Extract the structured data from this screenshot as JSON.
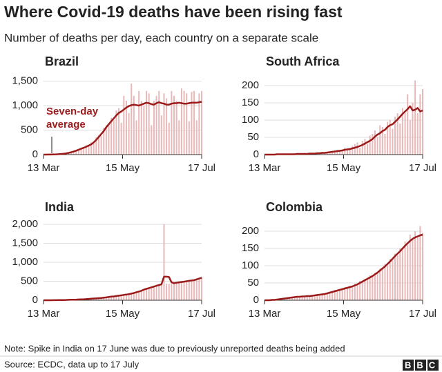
{
  "title": "Where Covid-19 deaths have been rising fast",
  "subtitle": "Number of deaths per day, each country on a separate scale",
  "note": "Note: Spike in India on 17 June was due to previously unreported deaths being added",
  "source": "Source: ECDC, data up to 17 July",
  "logo": "BBC",
  "chart_data": [
    {
      "type": "bar",
      "title": "Brazil",
      "annotation": [
        "Seven-day",
        "average"
      ],
      "x": [
        0,
        2,
        4,
        6,
        8,
        10,
        12,
        14,
        16,
        18,
        20,
        22,
        24,
        26,
        28,
        30,
        32,
        34,
        36,
        38,
        40,
        42,
        44,
        46,
        48,
        50,
        52,
        54,
        56,
        58,
        60,
        62,
        64,
        66,
        68,
        70,
        72,
        74,
        76,
        78,
        80,
        82,
        84,
        86,
        88,
        90,
        92,
        94,
        96,
        98,
        100,
        102,
        104,
        106,
        108,
        110,
        112,
        114,
        116,
        118,
        120,
        122,
        124,
        126
      ],
      "xlim": [
        0,
        126
      ],
      "xticks": [
        {
          "value": 0,
          "label": "13 Mar"
        },
        {
          "value": 63,
          "label": "15 May"
        },
        {
          "value": 126,
          "label": "17 Jul"
        }
      ],
      "ylim": [
        0,
        1550
      ],
      "yticks": [
        0,
        500,
        {
          "value": 1000,
          "label": "1,000"
        },
        {
          "value": 1500,
          "label": "1,500"
        }
      ],
      "grid": true,
      "daily": {
        "color": "#e9b8b8",
        "values": [
          0,
          0,
          2,
          3,
          5,
          7,
          10,
          15,
          20,
          30,
          40,
          50,
          70,
          90,
          110,
          140,
          120,
          190,
          200,
          250,
          270,
          350,
          400,
          380,
          550,
          600,
          650,
          750,
          700,
          900,
          950,
          650,
          1200,
          1100,
          850,
          1450,
          1200,
          700,
          1300,
          1100,
          1000,
          1300,
          1250,
          600,
          1100,
          1200,
          1300,
          800,
          1250,
          1150,
          650,
          1300,
          1200,
          1100,
          700,
          1350,
          1300,
          1250,
          680,
          1280,
          1300,
          700,
          1250,
          1300
        ]
      },
      "average": {
        "color": "#9b1b1b",
        "values": [
          0,
          0,
          1,
          2,
          4,
          6,
          9,
          13,
          18,
          25,
          35,
          48,
          62,
          80,
          100,
          120,
          140,
          160,
          185,
          210,
          250,
          300,
          360,
          420,
          480,
          560,
          620,
          680,
          740,
          800,
          850,
          880,
          920,
          960,
          990,
          1010,
          1020,
          1010,
          1000,
          1020,
          1040,
          1060,
          1050,
          1030,
          1020,
          1050,
          1070,
          1050,
          1040,
          1020,
          1020,
          1040,
          1050,
          1050,
          1060,
          1050,
          1040,
          1040,
          1050,
          1060,
          1060,
          1060,
          1070,
          1080
        ]
      }
    },
    {
      "type": "bar",
      "title": "South Africa",
      "x": [
        0,
        2,
        4,
        6,
        8,
        10,
        12,
        14,
        16,
        18,
        20,
        22,
        24,
        26,
        28,
        30,
        32,
        34,
        36,
        38,
        40,
        42,
        44,
        46,
        48,
        50,
        52,
        54,
        56,
        58,
        60,
        62,
        64,
        66,
        68,
        70,
        72,
        74,
        76,
        78,
        80,
        82,
        84,
        86,
        88,
        90,
        92,
        94,
        96,
        98,
        100,
        102,
        104,
        106,
        108,
        110,
        112,
        114,
        116,
        118,
        120,
        122,
        124,
        126
      ],
      "xlim": [
        0,
        126
      ],
      "xticks": [
        {
          "value": 0,
          "label": "13 Mar"
        },
        {
          "value": 63,
          "label": "15 May"
        },
        {
          "value": 126,
          "label": "17 Jul"
        }
      ],
      "ylim": [
        0,
        220
      ],
      "yticks": [
        0,
        50,
        100,
        150,
        200
      ],
      "grid": true,
      "daily": {
        "color": "#e9b8b8",
        "values": [
          0,
          0,
          0,
          0,
          1,
          1,
          2,
          1,
          1,
          2,
          1,
          2,
          1,
          3,
          2,
          3,
          2,
          4,
          3,
          5,
          4,
          6,
          5,
          8,
          6,
          7,
          9,
          10,
          12,
          14,
          10,
          15,
          20,
          18,
          15,
          25,
          30,
          35,
          20,
          40,
          45,
          30,
          55,
          60,
          70,
          50,
          85,
          80,
          60,
          95,
          100,
          75,
          110,
          120,
          90,
          135,
          120,
          175,
          100,
          150,
          215,
          120,
          175,
          190
        ]
      },
      "average": {
        "color": "#9b1b1b",
        "values": [
          0,
          0,
          0,
          0,
          0,
          1,
          1,
          1,
          1,
          1,
          1,
          1,
          1,
          2,
          2,
          2,
          2,
          2,
          3,
          3,
          3,
          4,
          4,
          5,
          5,
          6,
          7,
          8,
          9,
          10,
          11,
          12,
          14,
          15,
          16,
          18,
          20,
          22,
          25,
          28,
          32,
          36,
          40,
          45,
          52,
          58,
          62,
          68,
          72,
          80,
          85,
          88,
          95,
          102,
          110,
          118,
          125,
          132,
          140,
          128,
          130,
          135,
          125,
          128
        ]
      }
    },
    {
      "type": "bar",
      "title": "India",
      "x": [
        0,
        2,
        4,
        6,
        8,
        10,
        12,
        14,
        16,
        18,
        20,
        22,
        24,
        26,
        28,
        30,
        32,
        34,
        36,
        38,
        40,
        42,
        44,
        46,
        48,
        50,
        52,
        54,
        56,
        58,
        60,
        62,
        64,
        66,
        68,
        70,
        72,
        74,
        76,
        78,
        80,
        82,
        84,
        86,
        88,
        90,
        92,
        94,
        96,
        98,
        100,
        102,
        104,
        106,
        108,
        110,
        112,
        114,
        116,
        118,
        120,
        122,
        124,
        126
      ],
      "xlim": [
        0,
        126
      ],
      "xticks": [
        {
          "value": 0,
          "label": "13 Mar"
        },
        {
          "value": 63,
          "label": "15 May"
        },
        {
          "value": 126,
          "label": "17 Jul"
        }
      ],
      "ylim": [
        0,
        2000
      ],
      "yticks": [
        0,
        500,
        {
          "value": 1000,
          "label": "1,000"
        },
        {
          "value": 1500,
          "label": "1,500"
        },
        {
          "value": 2000,
          "label": "2,000"
        }
      ],
      "grid": true,
      "daily": {
        "color": "#e9b8b8",
        "values": [
          0,
          0,
          0,
          0,
          1,
          2,
          3,
          4,
          6,
          8,
          10,
          13,
          15,
          18,
          20,
          25,
          28,
          32,
          36,
          42,
          48,
          52,
          58,
          62,
          70,
          80,
          88,
          98,
          105,
          115,
          125,
          135,
          145,
          155,
          170,
          180,
          195,
          215,
          240,
          260,
          290,
          310,
          330,
          350,
          380,
          410,
          420,
          440,
          2000,
          440,
          430,
          440,
          450,
          460,
          470,
          480,
          490,
          500,
          510,
          520,
          540,
          560,
          580,
          620
        ]
      },
      "average": {
        "color": "#9b1b1b",
        "values": [
          0,
          0,
          0,
          0,
          1,
          2,
          3,
          4,
          5,
          8,
          10,
          12,
          14,
          17,
          20,
          23,
          26,
          30,
          35,
          40,
          45,
          50,
          55,
          60,
          68,
          75,
          85,
          95,
          100,
          110,
          120,
          130,
          140,
          150,
          160,
          175,
          190,
          210,
          230,
          250,
          280,
          300,
          320,
          340,
          360,
          380,
          400,
          420,
          620,
          620,
          610,
          470,
          450,
          460,
          470,
          480,
          490,
          500,
          510,
          520,
          530,
          550,
          570,
          590
        ]
      }
    },
    {
      "type": "bar",
      "title": "Colombia",
      "x": [
        0,
        2,
        4,
        6,
        8,
        10,
        12,
        14,
        16,
        18,
        20,
        22,
        24,
        26,
        28,
        30,
        32,
        34,
        36,
        38,
        40,
        42,
        44,
        46,
        48,
        50,
        52,
        54,
        56,
        58,
        60,
        62,
        64,
        66,
        68,
        70,
        72,
        74,
        76,
        78,
        80,
        82,
        84,
        86,
        88,
        90,
        92,
        94,
        96,
        98,
        100,
        102,
        104,
        106,
        108,
        110,
        112,
        114,
        116,
        118,
        120,
        122,
        124,
        126
      ],
      "xlim": [
        0,
        126
      ],
      "xticks": [
        {
          "value": 0,
          "label": "13 Mar"
        },
        {
          "value": 63,
          "label": "15 May"
        },
        {
          "value": 126,
          "label": "17 Jul"
        }
      ],
      "ylim": [
        0,
        220
      ],
      "yticks": [
        0,
        50,
        100,
        150,
        200
      ],
      "grid": true,
      "daily": {
        "color": "#e9b8b8",
        "values": [
          0,
          0,
          1,
          1,
          2,
          3,
          4,
          5,
          6,
          7,
          8,
          10,
          9,
          12,
          11,
          12,
          10,
          14,
          13,
          15,
          15,
          18,
          15,
          20,
          17,
          22,
          24,
          26,
          30,
          29,
          33,
          30,
          38,
          35,
          42,
          40,
          48,
          45,
          56,
          55,
          62,
          60,
          72,
          68,
          80,
          78,
          92,
          88,
          105,
          100,
          120,
          115,
          135,
          130,
          150,
          145,
          170,
          160,
          190,
          175,
          200,
          185,
          215,
          195
        ]
      },
      "average": {
        "color": "#9b1b1b",
        "values": [
          0,
          0,
          0,
          1,
          1,
          2,
          3,
          4,
          5,
          6,
          7,
          8,
          9,
          10,
          10,
          11,
          11,
          12,
          12,
          13,
          14,
          15,
          16,
          17,
          18,
          20,
          22,
          24,
          26,
          28,
          30,
          32,
          34,
          36,
          38,
          40,
          43,
          46,
          50,
          54,
          58,
          62,
          66,
          70,
          75,
          80,
          86,
          92,
          98,
          105,
          112,
          120,
          128,
          135,
          142,
          150,
          158,
          165,
          172,
          178,
          182,
          185,
          188,
          190
        ]
      }
    }
  ]
}
